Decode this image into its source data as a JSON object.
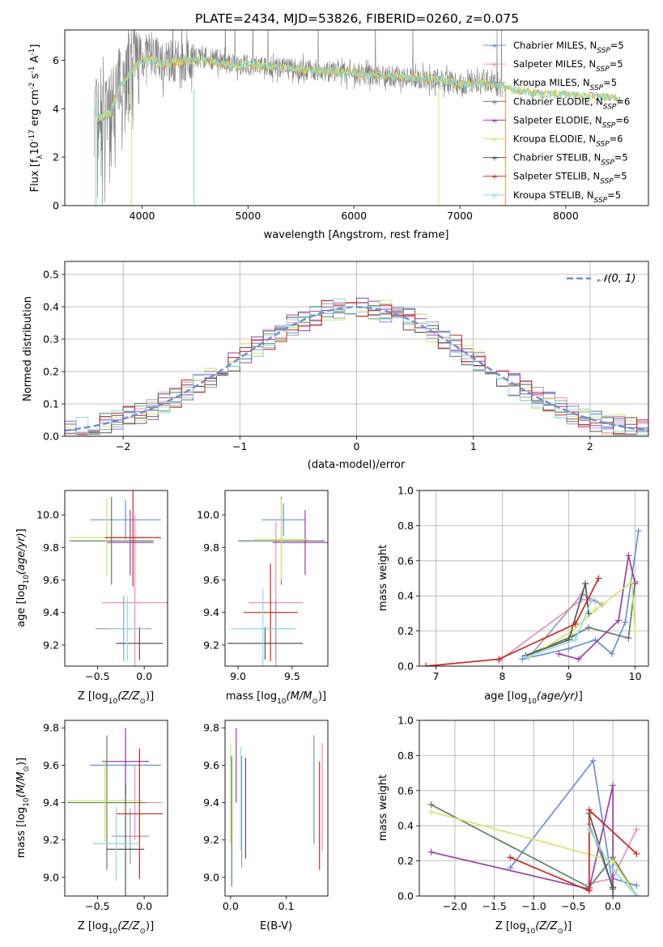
{
  "title": "PLATE=2434, MJD=53826, FIBERID=0260, z=0.075",
  "models": [
    {
      "name": "Chabrier MILES, N",
      "sub": "SSP",
      "suffix": "=5",
      "color": "#6d8fd6"
    },
    {
      "name": "Salpeter MILES, N",
      "sub": "SSP",
      "suffix": "=5",
      "color": "#e98fc0"
    },
    {
      "name": "Kroupa MILES, N",
      "sub": "SSP",
      "suffix": "=5",
      "color": "#9aa0a6"
    },
    {
      "name": "Chabrier ELODIE, N",
      "sub": "SSP",
      "suffix": "=6",
      "color": "#5f7f6a"
    },
    {
      "name": "Salpeter ELODIE, N",
      "sub": "SSP",
      "suffix": "=6",
      "color": "#9b3ea8"
    },
    {
      "name": "Kroupa ELODIE, N",
      "sub": "SSP",
      "suffix": "=6",
      "color": "#cfe86a"
    },
    {
      "name": "Chabrier STELIB, N",
      "sub": "SSP",
      "suffix": "=5",
      "color": "#555555"
    },
    {
      "name": "Salpeter STELIB, N",
      "sub": "SSP",
      "suffix": "=5",
      "color": "#c8281e"
    },
    {
      "name": "Kroupa STELIB, N",
      "sub": "SSP",
      "suffix": "=5",
      "color": "#8fdce6"
    }
  ],
  "chart_data": [
    {
      "id": "spectrum",
      "type": "line",
      "xlabel": "wavelength [Angstrom, rest frame]",
      "ylabel": "Flux [f",
      "ylabel_parts": {
        "lambda": "λ",
        "scale": "10",
        "scale_exp": "-17",
        "unit": " erg cm",
        "cm_exp": "-2",
        "s": " s",
        "s_exp": "-1",
        "A": " A",
        "A_exp": "-1",
        "close": "]"
      },
      "xlim": [
        3270,
        8780
      ],
      "ylim": [
        0,
        7.25
      ],
      "xticks": [
        4000,
        5000,
        6000,
        7000,
        8000
      ],
      "yticks": [
        0,
        2,
        4,
        6
      ],
      "grid": false,
      "legend": "top-right",
      "data_trend": {
        "x": [
          3550,
          3600,
          3700,
          3800,
          3950,
          4050,
          4200,
          4400,
          4600,
          4800,
          5000,
          5300,
          5600,
          5900,
          6200,
          6500,
          6800,
          7000,
          7200,
          7400
        ],
        "y": [
          3.8,
          3.5,
          3.9,
          5.1,
          5.8,
          6.3,
          5.9,
          6.0,
          6.1,
          5.9,
          5.8,
          5.7,
          5.6,
          5.5,
          5.4,
          5.3,
          5.2,
          5.0,
          5.1,
          4.9
        ]
      },
      "model_trend": {
        "x": [
          3550,
          3600,
          3700,
          3800,
          3950,
          4050,
          4200,
          4400,
          4600,
          4800,
          5000,
          5300,
          5600,
          5900,
          6200,
          6500,
          6800,
          7000,
          7200,
          7400,
          7600,
          7800,
          8000,
          8200,
          8400,
          8500
        ],
        "y": [
          3.9,
          3.6,
          3.8,
          5.0,
          5.8,
          6.1,
          5.8,
          6.0,
          6.0,
          5.8,
          5.8,
          5.7,
          5.6,
          5.5,
          5.4,
          5.3,
          5.2,
          5.0,
          5.1,
          4.9,
          4.7,
          4.6,
          4.6,
          4.5,
          4.5,
          4.4
        ]
      }
    },
    {
      "id": "residuals",
      "type": "step",
      "xlabel": "(data-model)/error",
      "ylabel": "Normed distribution",
      "xlim": [
        -2.5,
        2.5
      ],
      "ylim": [
        0,
        0.54
      ],
      "xticks": [
        -2,
        -1,
        0,
        1,
        2
      ],
      "yticks": [
        0.0,
        0.1,
        0.2,
        0.3,
        0.4,
        0.5
      ],
      "grid": true,
      "legend": "top-right",
      "reference_label": "𝒩(0, 1)",
      "reference_color": "#6a8fd6"
    },
    {
      "id": "age-vs-Z",
      "type": "errorbar",
      "xlabel": "Z [log",
      "xlabel_parts": {
        "sub": "10",
        "arg": "(Z/Z",
        "sun": "⊙",
        "close": ")]"
      },
      "ylabel": "age  [log",
      "ylabel_parts": {
        "sub": "10",
        "arg": "(age/yr)",
        "close": "]"
      },
      "xlim": [
        -0.85,
        0.25
      ],
      "ylim": [
        9.07,
        10.15
      ],
      "xticks": [
        -0.5,
        0.0
      ],
      "yticks": [
        9.2,
        9.4,
        9.6,
        9.8,
        10.0
      ],
      "grid": false,
      "points": [
        {
          "x": -0.2,
          "xerr": 0.38,
          "y": 9.97,
          "yerr": 0.12,
          "c": 0
        },
        {
          "x": -0.1,
          "xerr": 0.35,
          "y": 9.46,
          "yerr": 0.54,
          "c": 1
        },
        {
          "x": -0.22,
          "xerr": 0.3,
          "y": 9.3,
          "yerr": 0.2,
          "c": 2
        },
        {
          "x": -0.35,
          "xerr": 0.45,
          "y": 9.84,
          "yerr": 0.27,
          "c": 3
        },
        {
          "x": -0.15,
          "xerr": 0.25,
          "y": 9.83,
          "yerr": 0.2,
          "c": 4
        },
        {
          "x": -0.4,
          "xerr": 0.4,
          "y": 9.86,
          "yerr": 0.24,
          "c": 5
        },
        {
          "x": -0.05,
          "xerr": 0.25,
          "y": 9.21,
          "yerr": 0.1,
          "c": 6
        },
        {
          "x": -0.12,
          "xerr": 0.3,
          "y": 9.86,
          "yerr": 0.3,
          "c": 7
        },
        {
          "x": -0.18,
          "xerr": 0.2,
          "y": 9.3,
          "yerr": 0.2,
          "c": 8
        }
      ]
    },
    {
      "id": "age-vs-mass",
      "type": "errorbar",
      "xlabel": "mass [log",
      "xlabel_parts": {
        "sub": "10",
        "arg": "(M/M",
        "sun": "⊙",
        "close": ")]"
      },
      "xlim": [
        8.88,
        9.83
      ],
      "ylim": [
        9.07,
        10.15
      ],
      "xticks": [
        9.0,
        9.5
      ],
      "yticks": [
        9.2,
        9.4,
        9.6,
        9.8,
        10.0
      ],
      "grid": false,
      "points": [
        {
          "x": 9.42,
          "xerr": 0.2,
          "y": 9.97,
          "yerr": 0.1,
          "c": 0
        },
        {
          "x": 9.35,
          "xerr": 0.25,
          "y": 9.46,
          "yerr": 0.5,
          "c": 1
        },
        {
          "x": 9.35,
          "xerr": 0.15,
          "y": 9.3,
          "yerr": 0.18,
          "c": 2
        },
        {
          "x": 9.4,
          "xerr": 0.4,
          "y": 9.84,
          "yerr": 0.27,
          "c": 3
        },
        {
          "x": 9.62,
          "xerr": 0.3,
          "y": 9.83,
          "yerr": 0.2,
          "c": 4
        },
        {
          "x": 9.4,
          "xerr": 0.25,
          "y": 9.85,
          "yerr": 0.25,
          "c": 5
        },
        {
          "x": 9.25,
          "xerr": 0.35,
          "y": 9.21,
          "yerr": 0.1,
          "c": 6
        },
        {
          "x": 9.3,
          "xerr": 0.25,
          "y": 9.4,
          "yerr": 0.3,
          "c": 7
        },
        {
          "x": 9.23,
          "xerr": 0.3,
          "y": 9.3,
          "yerr": 0.25,
          "c": 8
        }
      ]
    },
    {
      "id": "weight-vs-age",
      "type": "line",
      "xlabel": "age  [log",
      "xlabel_parts": {
        "sub": "10",
        "arg": "(age/yr)",
        "close": "]"
      },
      "ylabel": "mass weight",
      "xlim": [
        6.75,
        10.2
      ],
      "ylim": [
        0,
        1.0
      ],
      "xticks": [
        7,
        8,
        9,
        10
      ],
      "yticks": [
        0.0,
        0.2,
        0.4,
        0.6,
        0.8,
        1.0
      ],
      "grid": true,
      "series": [
        {
          "c": 0,
          "x": [
            8.3,
            9.0,
            9.4,
            9.65,
            9.85,
            10.05
          ],
          "y": [
            0.04,
            0.1,
            0.15,
            0.07,
            0.25,
            0.77
          ]
        },
        {
          "c": 1,
          "x": [
            7.95,
            9.2,
            9.4
          ],
          "y": [
            0.03,
            0.38,
            0.37
          ]
        },
        {
          "c": 2,
          "x": [
            8.4,
            9.2,
            9.5
          ],
          "y": [
            0.05,
            0.41,
            0.35
          ]
        },
        {
          "c": 3,
          "x": [
            8.35,
            9.05,
            9.3,
            9.9,
            10.0
          ],
          "y": [
            0.06,
            0.17,
            0.22,
            0.16,
            0.48
          ]
        },
        {
          "c": 4,
          "x": [
            8.85,
            9.15,
            9.75,
            9.9,
            10.0
          ],
          "y": [
            0.07,
            0.04,
            0.26,
            0.63,
            0.47
          ]
        },
        {
          "c": 5,
          "x": [
            8.4,
            9.05,
            9.4,
            9.95,
            10.0
          ],
          "y": [
            0.05,
            0.2,
            0.32,
            0.48,
            0.2
          ]
        },
        {
          "c": 6,
          "x": [
            8.35,
            9.0,
            9.25,
            9.3
          ],
          "y": [
            0.06,
            0.15,
            0.47,
            0.3
          ]
        },
        {
          "c": 7,
          "x": [
            6.85,
            7.95,
            9.1,
            9.45
          ],
          "y": [
            0.0,
            0.04,
            0.24,
            0.5
          ]
        },
        {
          "c": 8,
          "x": [
            8.35,
            9.1,
            9.35
          ],
          "y": [
            0.05,
            0.15,
            0.38
          ]
        }
      ]
    },
    {
      "id": "mass-vs-Z",
      "type": "errorbar",
      "xlabel": "Z [log",
      "xlabel_parts": {
        "sub": "10",
        "arg": "(Z/Z",
        "sun": "⊙",
        "close": ")]"
      },
      "ylabel": "mass [log",
      "ylabel_parts": {
        "sub": "10",
        "arg": "(M/M",
        "sun": "⊙",
        "close": ")]"
      },
      "xlim": [
        -0.85,
        0.25
      ],
      "ylim": [
        8.9,
        9.84
      ],
      "xticks": [
        -0.5,
        0.0
      ],
      "yticks": [
        9.0,
        9.2,
        9.4,
        9.6,
        9.8
      ],
      "grid": false,
      "points": [
        {
          "x": -0.2,
          "xerr": 0.38,
          "y": 9.6,
          "yerr": 0.15,
          "c": 0
        },
        {
          "x": -0.1,
          "xerr": 0.3,
          "y": 9.4,
          "yerr": 0.2,
          "c": 1
        },
        {
          "x": -0.15,
          "xerr": 0.2,
          "y": 9.22,
          "yerr": 0.15,
          "c": 2
        },
        {
          "x": -0.4,
          "xerr": 0.42,
          "y": 9.4,
          "yerr": 0.36,
          "c": 3
        },
        {
          "x": -0.2,
          "xerr": 0.25,
          "y": 9.62,
          "yerr": 0.18,
          "c": 4
        },
        {
          "x": -0.42,
          "xerr": 0.4,
          "y": 9.41,
          "yerr": 0.22,
          "c": 5
        },
        {
          "x": -0.2,
          "xerr": 0.2,
          "y": 9.15,
          "yerr": 0.35,
          "c": 6
        },
        {
          "x": -0.05,
          "xerr": 0.25,
          "y": 9.34,
          "yerr": 0.35,
          "c": 7
        },
        {
          "x": -0.3,
          "xerr": 0.25,
          "y": 9.18,
          "yerr": 0.2,
          "c": 8
        }
      ]
    },
    {
      "id": "mass-vs-EBV",
      "type": "errorbar",
      "xlabel": "E(B-V)",
      "xlim": [
        -0.01,
        0.175
      ],
      "ylim": [
        8.9,
        9.84
      ],
      "xticks": [
        0.0,
        0.1
      ],
      "yticks": [
        9.0,
        9.2,
        9.4,
        9.6,
        9.8
      ],
      "grid": false,
      "points": [
        {
          "x": 0.15,
          "y": 9.47,
          "yerr": 0.29,
          "c": 0
        },
        {
          "x": 0.165,
          "y": 9.43,
          "yerr": 0.29,
          "c": 1
        },
        {
          "x": 0.02,
          "y": 9.35,
          "yerr": 0.3,
          "c": 2
        },
        {
          "x": 0.002,
          "y": 9.3,
          "yerr": 0.35,
          "c": 3
        },
        {
          "x": 0.01,
          "y": 9.6,
          "yerr": 0.2,
          "c": 4
        },
        {
          "x": 0.0,
          "y": 9.45,
          "yerr": 0.27,
          "c": 5
        },
        {
          "x": 0.027,
          "y": 9.37,
          "yerr": 0.27,
          "c": 6
        },
        {
          "x": 0.16,
          "y": 9.33,
          "yerr": 0.29,
          "c": 7
        },
        {
          "x": 0.018,
          "y": 9.42,
          "yerr": 0.28,
          "c": 8
        }
      ]
    },
    {
      "id": "weight-vs-Z",
      "type": "line",
      "xlabel": "Z [log",
      "xlabel_parts": {
        "sub": "10",
        "arg": "(Z/Z",
        "sun": "⊙",
        "close": ")]"
      },
      "ylabel": "mass weight",
      "xlim": [
        -2.45,
        0.45
      ],
      "ylim": [
        0,
        1.0
      ],
      "xticks": [
        -2.0,
        -1.5,
        -1.0,
        -0.5,
        0.0
      ],
      "yticks": [
        0.0,
        0.2,
        0.4,
        0.6,
        0.8,
        1.0
      ],
      "grid": true,
      "series": [
        {
          "c": 0,
          "x": [
            -1.3,
            -0.25,
            0.0,
            0.0,
            0.3
          ],
          "y": [
            0.16,
            0.77,
            0.05,
            0.1,
            0.06
          ]
        },
        {
          "c": 1,
          "x": [
            -0.3,
            0.0,
            0.3
          ],
          "y": [
            0.07,
            0.1,
            0.38
          ]
        },
        {
          "c": 2,
          "x": [
            -0.3,
            0.0,
            0.0
          ],
          "y": [
            0.41,
            0.05,
            0.15
          ]
        },
        {
          "c": 3,
          "x": [
            -2.3,
            -0.3,
            0.0,
            0.3
          ],
          "y": [
            0.52,
            0.05,
            0.22,
            0.0
          ]
        },
        {
          "c": 4,
          "x": [
            -2.3,
            -0.3,
            0.0,
            0.0
          ],
          "y": [
            0.25,
            0.04,
            0.63,
            0.0
          ]
        },
        {
          "c": 5,
          "x": [
            -2.3,
            0.0,
            0.3
          ],
          "y": [
            0.48,
            0.2,
            0.0
          ]
        },
        {
          "c": 6,
          "x": [
            -0.3,
            0.0,
            0.0
          ],
          "y": [
            0.47,
            0.04,
            0.05
          ]
        },
        {
          "c": 7,
          "x": [
            -1.3,
            -0.3,
            -0.3,
            0.3
          ],
          "y": [
            0.22,
            0.03,
            0.49,
            0.24
          ]
        },
        {
          "c": 8,
          "x": [
            -0.3,
            0.0,
            0.3
          ],
          "y": [
            0.38,
            0.15,
            0.0
          ]
        }
      ]
    }
  ]
}
